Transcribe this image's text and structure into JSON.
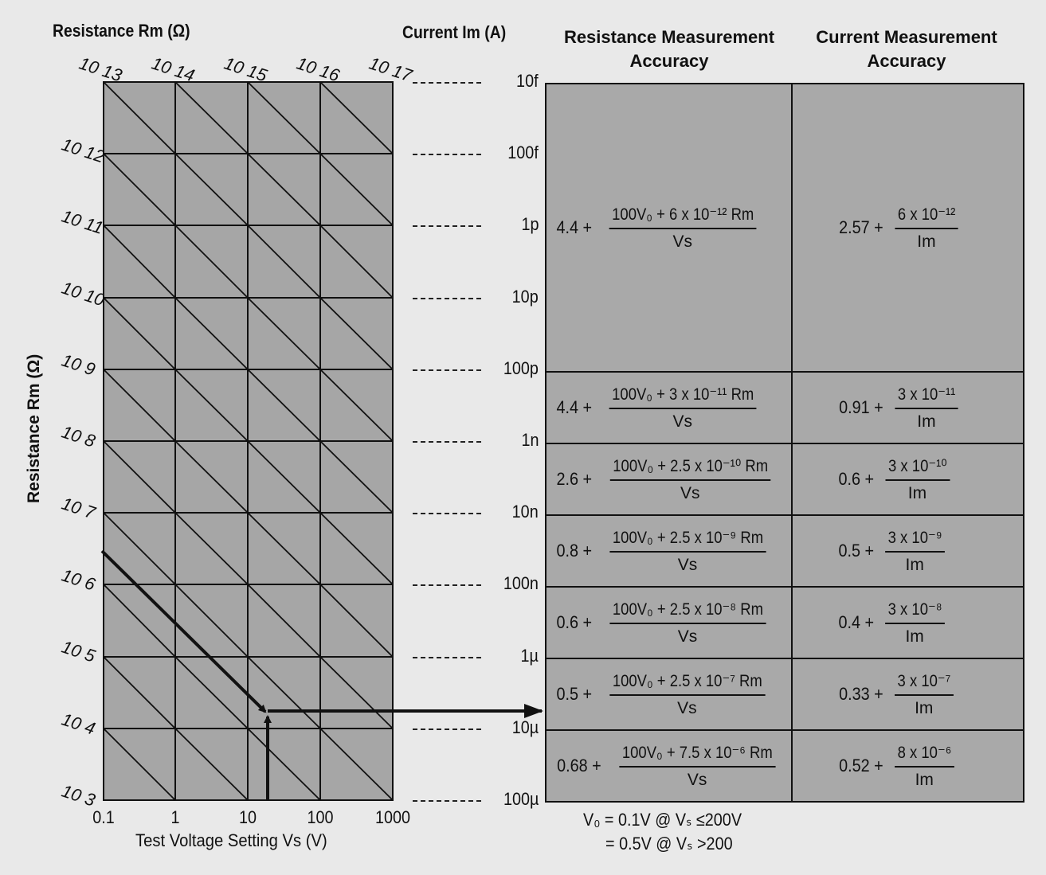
{
  "header": {
    "left_title": "Resistance Rm  (Ω)",
    "current_title": "Current Im (A)",
    "res_acc_title": [
      "Resistance Measurement",
      "Accuracy"
    ],
    "cur_acc_title": [
      "Current Measurement",
      "Accuracy"
    ]
  },
  "left_axis_label": "Resistance Rm  (Ω)",
  "top_resistance_labels": [
    "10 13",
    "10 14",
    "10 15",
    "10 16",
    "10 17"
  ],
  "left_resistance_labels": [
    "10 12",
    "10 11",
    "10 10",
    "10 9",
    "10 8",
    "10 7",
    "10 6",
    "10 5",
    "10 4",
    "10 3"
  ],
  "x_ticks": [
    "0.1",
    "1",
    "10",
    "100",
    "1000"
  ],
  "x_axis_label": "Test Voltage Setting Vs (V)",
  "current_labels": [
    "10f",
    "100f",
    "1p",
    "10p",
    "100p",
    "1n",
    "10n",
    "100n",
    "1µ",
    "10µ",
    "100µ"
  ],
  "accuracy_rows": [
    {
      "res_pre": "4.4 +",
      "res_num": "100V₀ + 6 x 10⁻¹² Rm",
      "res_den": "Vs",
      "cur_pre": "2.57 +",
      "cur_num": "6 x 10⁻¹²",
      "cur_den": "Im"
    },
    {
      "res_pre": "4.4 +",
      "res_num": "100V₀ + 3 x 10⁻¹¹ Rm",
      "res_den": "Vs",
      "cur_pre": "0.91 +",
      "cur_num": "3 x 10⁻¹¹",
      "cur_den": "Im"
    },
    {
      "res_pre": "2.6 +",
      "res_num": "100V₀ + 2.5 x 10⁻¹⁰ Rm",
      "res_den": "Vs",
      "cur_pre": "0.6 +",
      "cur_num": "3 x 10⁻¹⁰",
      "cur_den": "Im"
    },
    {
      "res_pre": "0.8 +",
      "res_num": "100V₀ + 2.5 x 10⁻⁹ Rm",
      "res_den": "Vs",
      "cur_pre": "0.5 +",
      "cur_num": "3 x 10⁻⁹",
      "cur_den": "Im"
    },
    {
      "res_pre": "0.6 +",
      "res_num": "100V₀ + 2.5 x 10⁻⁸ Rm",
      "res_den": "Vs",
      "cur_pre": "0.4 +",
      "cur_num": "3 x 10⁻⁸",
      "cur_den": "Im"
    },
    {
      "res_pre": "0.5 +",
      "res_num": "100V₀ + 2.5 x 10⁻⁷ Rm",
      "res_den": "Vs",
      "cur_pre": "0.33 +",
      "cur_num": "3 x 10⁻⁷",
      "cur_den": "Im"
    },
    {
      "res_pre": "0.68 +",
      "res_num": "100V₀ + 7.5 x 10⁻⁶ Rm",
      "res_den": "Vs",
      "cur_pre": "0.52 +",
      "cur_num": "8 x 10⁻⁶",
      "cur_den": "Im"
    }
  ],
  "notes": [
    "V₀ = 0.1V @ Vₛ ≤200V",
    "= 0.5V @ Vₛ >200"
  ],
  "colors": {
    "chart_fill": "#a6a6a6",
    "line": "#111111",
    "background": "#e9e9e9"
  }
}
